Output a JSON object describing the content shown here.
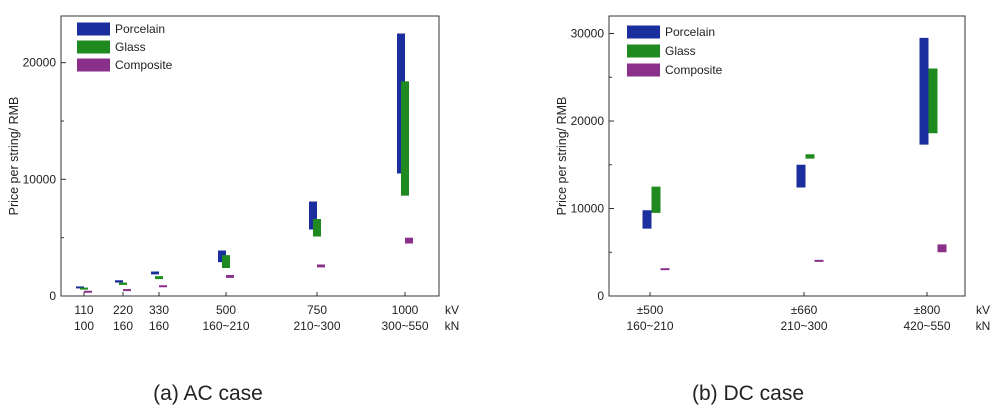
{
  "chart_data": [
    {
      "type": "floating-bar",
      "caption": "(a)  AC case",
      "ylabel": "Price per string/ RMB",
      "ylim": [
        0,
        24000
      ],
      "yticks": [
        0,
        10000,
        20000
      ],
      "x_unit_labels": [
        "kV",
        "kN"
      ],
      "categories": [
        {
          "kv": "110",
          "kn": "100"
        },
        {
          "kv": "220",
          "kn": "160"
        },
        {
          "kv": "330",
          "kn": "160"
        },
        {
          "kv": "500",
          "kn": "160~210"
        },
        {
          "kv": "750",
          "kn": "210~300"
        },
        {
          "kv": "1000",
          "kn": "300~550"
        }
      ],
      "legend": {
        "placement": "top-left"
      },
      "series": [
        {
          "name": "Porcelain",
          "color": "#1b2e9e",
          "ranges": [
            [
              650,
              800
            ],
            [
              1150,
              1350
            ],
            [
              1850,
              2100
            ],
            [
              2900,
              3900
            ],
            [
              5700,
              8100
            ],
            [
              10500,
              22500
            ]
          ]
        },
        {
          "name": "Glass",
          "color": "#1f8a1f",
          "ranges": [
            [
              550,
              700
            ],
            [
              950,
              1150
            ],
            [
              1450,
              1700
            ],
            [
              2400,
              3500
            ],
            [
              5100,
              6600
            ],
            [
              8600,
              18400
            ]
          ]
        },
        {
          "name": "Composite",
          "color": "#8a2f8a",
          "ranges": [
            [
              280,
              360
            ],
            [
              420,
              520
            ],
            [
              750,
              880
            ],
            [
              1550,
              1800
            ],
            [
              2450,
              2700
            ],
            [
              4500,
              5000
            ]
          ]
        }
      ]
    },
    {
      "type": "floating-bar",
      "caption": "(b) DC case",
      "ylabel": "Price per string/ RMB",
      "ylim": [
        0,
        32000
      ],
      "yticks": [
        0,
        10000,
        20000,
        30000
      ],
      "x_unit_labels": [
        "kV",
        "kN"
      ],
      "categories": [
        {
          "kv": "±500",
          "kn": "160~210"
        },
        {
          "kv": "±660",
          "kn": "210~300"
        },
        {
          "kv": "±800",
          "kn": "420~550"
        }
      ],
      "legend": {
        "placement": "top-left"
      },
      "series": [
        {
          "name": "Porcelain",
          "color": "#1b2e9e",
          "ranges": [
            [
              7700,
              9800
            ],
            [
              12400,
              15000
            ],
            [
              17300,
              29500
            ]
          ]
        },
        {
          "name": "Glass",
          "color": "#1f8a1f",
          "ranges": [
            [
              9500,
              12500
            ],
            [
              15700,
              16200
            ],
            [
              18600,
              26000
            ]
          ]
        },
        {
          "name": "Composite",
          "color": "#8a2f8a",
          "ranges": [
            [
              2950,
              3100
            ],
            [
              3900,
              4050
            ],
            [
              5000,
              5900
            ]
          ]
        }
      ]
    }
  ]
}
